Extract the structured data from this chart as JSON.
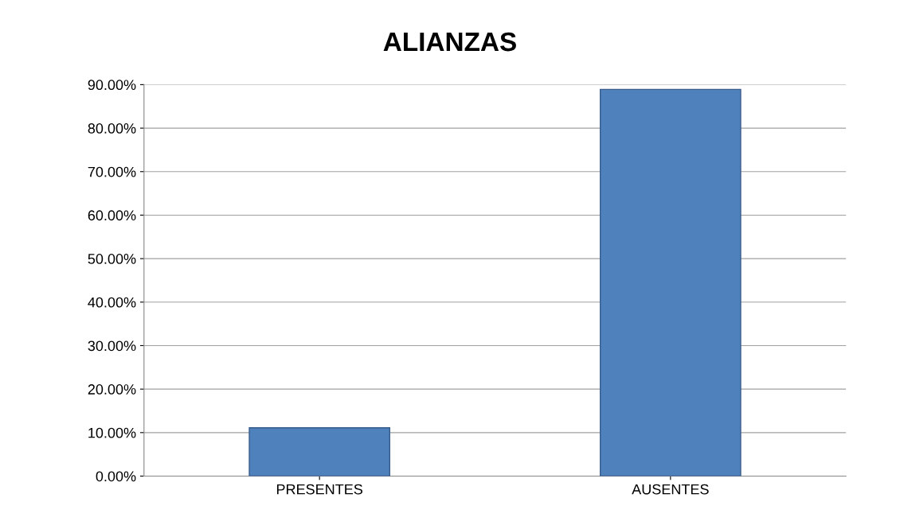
{
  "chart_data": {
    "type": "bar",
    "title": "ALIANZAS",
    "categories": [
      "PRESENTES",
      "AUSENTES"
    ],
    "values": [
      11.1,
      88.9
    ],
    "color": "#4f81bd",
    "ylim": [
      0,
      90
    ],
    "yticks": [
      {
        "value": 0,
        "label": "0.00%"
      },
      {
        "value": 10,
        "label": "10.00%"
      },
      {
        "value": 20,
        "label": "20.00%"
      },
      {
        "value": 30,
        "label": "30.00%"
      },
      {
        "value": 40,
        "label": "40.00%"
      },
      {
        "value": 50,
        "label": "50.00%"
      },
      {
        "value": 60,
        "label": "60.00%"
      },
      {
        "value": 70,
        "label": "70.00%"
      },
      {
        "value": 80,
        "label": "80.00%"
      },
      {
        "value": 90,
        "label": "90.00%"
      }
    ],
    "grid": "y"
  }
}
